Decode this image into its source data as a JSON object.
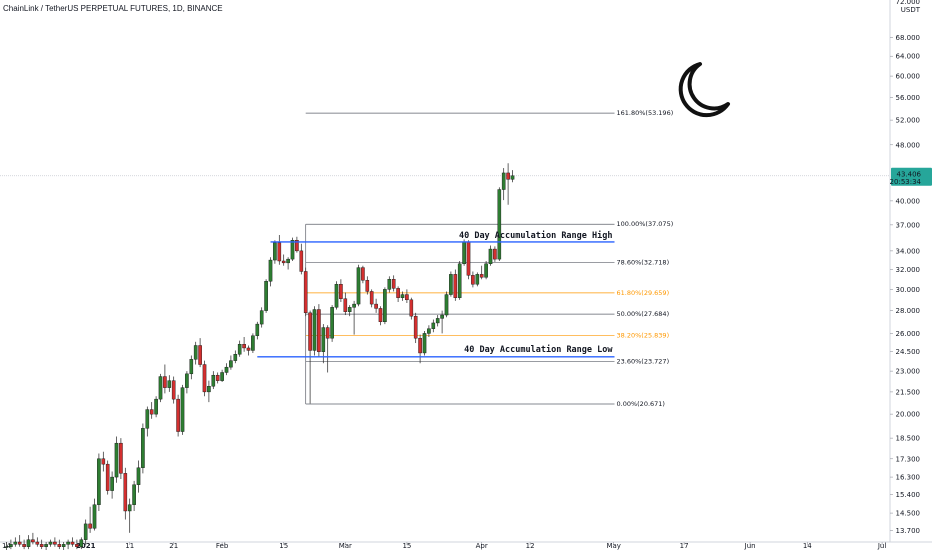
{
  "header": {
    "title": "ChainLink / TetherUS PERPETUAL FUTURES, 1D, BINANCE",
    "currency": "USDT",
    "top_price": "72.000"
  },
  "price_tag": {
    "value": "43.406",
    "countdown": "20:53:34",
    "color": "#26a69a"
  },
  "colors": {
    "up": "#26a69a",
    "down": "#ef5350",
    "fib_gray": "#787b86",
    "fib_orange": "#ff9800",
    "range_line": "#2962ff"
  },
  "annotations": {
    "range_high": "40 Day Accumulation Range High",
    "range_low": "40 Day Accumulation Range Low",
    "moon_icon": "crescent-moon-icon"
  },
  "chart_data": {
    "type": "candlestick",
    "title": "ChainLink / TetherUS PERPETUAL FUTURES, 1D, BINANCE",
    "xlabel": "",
    "ylabel": "",
    "y_scale": "log",
    "y_ticks": [
      "68.000",
      "64.000",
      "60.000",
      "56.000",
      "52.000",
      "48.000",
      "40.000",
      "37.000",
      "34.000",
      "32.000",
      "30.000",
      "28.000",
      "26.000",
      "24.500",
      "23.000",
      "21.500",
      "20.000",
      "18.500",
      "17.300",
      "16.300",
      "15.400",
      "14.500",
      "13.700"
    ],
    "x_ticks": [
      "14",
      "2021",
      "11",
      "21",
      "Feb",
      "15",
      "Mar",
      "15",
      "Apr",
      "12",
      "May",
      "17",
      "Jun",
      "14",
      "Jul"
    ],
    "start_date": "2020-12-14",
    "grid": false,
    "last_price": 43.406,
    "fib_levels": [
      {
        "label": "161.80%(53.196)",
        "value": 53.196,
        "style": "gray"
      },
      {
        "label": "100.00%(37.075)",
        "value": 37.075,
        "style": "gray"
      },
      {
        "label": "78.60%(32.718)",
        "value": 32.718,
        "style": "gray"
      },
      {
        "label": "61.80%(29.659)",
        "value": 29.659,
        "style": "orange"
      },
      {
        "label": "50.00%(27.684)",
        "value": 27.684,
        "style": "gray"
      },
      {
        "label": "38.20%(25.839)",
        "value": 25.839,
        "style": "orange"
      },
      {
        "label": "23.60%(23.727)",
        "value": 23.727,
        "style": "gray"
      },
      {
        "label": "0.00%(20.671)",
        "value": 20.671,
        "style": "gray"
      }
    ],
    "range_lines": [
      {
        "name": "40 Day Accumulation Range High",
        "value": 35.0,
        "from": "2021-02-12",
        "to": "2021-04-13"
      },
      {
        "name": "40 Day Accumulation Range Low",
        "value": 24.1,
        "from": "2021-02-09",
        "to": "2021-04-13"
      }
    ],
    "fib_from": "2021-02-20",
    "fib_to": "2021-04-13",
    "candles": [
      [
        13.0,
        13.2,
        12.8,
        13.0
      ],
      [
        13.0,
        13.3,
        12.9,
        13.1
      ],
      [
        13.1,
        13.4,
        13.0,
        13.2
      ],
      [
        13.2,
        13.5,
        13.0,
        13.1
      ],
      [
        13.1,
        13.3,
        12.9,
        13.0
      ],
      [
        13.0,
        13.5,
        12.9,
        13.3
      ],
      [
        13.3,
        13.6,
        13.1,
        13.2
      ],
      [
        13.2,
        13.4,
        13.0,
        13.1
      ],
      [
        13.1,
        13.3,
        12.9,
        13.0
      ],
      [
        13.0,
        13.2,
        12.8,
        13.1
      ],
      [
        13.1,
        13.3,
        13.0,
        13.2
      ],
      [
        13.2,
        13.4,
        13.0,
        13.1
      ],
      [
        13.1,
        13.3,
        12.9,
        13.0
      ],
      [
        13.0,
        13.2,
        12.8,
        13.1
      ],
      [
        13.1,
        13.3,
        12.9,
        13.2
      ],
      [
        13.2,
        13.4,
        13.0,
        13.1
      ],
      [
        13.1,
        13.3,
        12.9,
        13.0
      ],
      [
        13.0,
        13.4,
        12.9,
        13.3
      ],
      [
        13.3,
        14.2,
        13.1,
        14.0
      ],
      [
        14.0,
        14.8,
        13.6,
        13.8
      ],
      [
        13.8,
        15.2,
        13.7,
        14.9
      ],
      [
        14.9,
        17.6,
        14.6,
        17.3
      ],
      [
        17.3,
        17.7,
        16.6,
        17.0
      ],
      [
        17.0,
        17.2,
        15.4,
        15.6
      ],
      [
        15.6,
        16.6,
        15.2,
        16.3
      ],
      [
        16.3,
        18.6,
        16.0,
        18.2
      ],
      [
        18.2,
        18.5,
        16.2,
        16.5
      ],
      [
        16.5,
        16.8,
        14.2,
        14.6
      ],
      [
        14.6,
        15.2,
        13.6,
        14.9
      ],
      [
        14.9,
        16.1,
        14.6,
        15.9
      ],
      [
        15.9,
        17.2,
        15.5,
        16.8
      ],
      [
        16.8,
        19.4,
        16.5,
        19.1
      ],
      [
        19.1,
        20.5,
        18.6,
        20.3
      ],
      [
        20.3,
        20.8,
        19.7,
        20.0
      ],
      [
        20.0,
        21.2,
        19.8,
        21.0
      ],
      [
        21.0,
        22.8,
        20.8,
        22.6
      ],
      [
        22.6,
        23.5,
        21.4,
        21.8
      ],
      [
        21.8,
        22.7,
        21.5,
        22.3
      ],
      [
        22.3,
        22.6,
        20.7,
        21.0
      ],
      [
        21.0,
        21.3,
        18.6,
        18.9
      ],
      [
        18.9,
        22.0,
        18.7,
        21.8
      ],
      [
        21.8,
        23.0,
        21.4,
        22.8
      ],
      [
        22.8,
        24.2,
        22.4,
        23.9
      ],
      [
        23.9,
        25.3,
        23.5,
        25.0
      ],
      [
        25.0,
        25.6,
        23.3,
        23.5
      ],
      [
        23.5,
        23.8,
        21.2,
        21.5
      ],
      [
        21.5,
        22.3,
        20.8,
        21.9
      ],
      [
        21.9,
        23.0,
        21.7,
        22.7
      ],
      [
        22.7,
        22.9,
        22.1,
        22.3
      ],
      [
        22.3,
        23.1,
        22.2,
        22.9
      ],
      [
        22.9,
        23.6,
        22.7,
        23.3
      ],
      [
        23.3,
        24.2,
        23.1,
        23.8
      ],
      [
        23.8,
        24.6,
        23.6,
        24.3
      ],
      [
        24.3,
        25.4,
        24.1,
        25.1
      ],
      [
        25.1,
        25.7,
        24.5,
        24.8
      ],
      [
        24.8,
        25.0,
        24.2,
        24.6
      ],
      [
        24.6,
        26.0,
        24.4,
        25.8
      ],
      [
        25.8,
        27.0,
        25.5,
        26.8
      ],
      [
        26.8,
        28.3,
        26.5,
        28.0
      ],
      [
        28.0,
        31.0,
        27.8,
        30.8
      ],
      [
        30.8,
        33.3,
        30.3,
        33.0
      ],
      [
        33.0,
        35.2,
        32.6,
        34.9
      ],
      [
        34.9,
        35.8,
        32.5,
        32.9
      ],
      [
        32.9,
        33.6,
        32.4,
        32.7
      ],
      [
        32.7,
        33.3,
        32.0,
        33.1
      ],
      [
        33.1,
        35.5,
        32.9,
        35.2
      ],
      [
        35.2,
        35.6,
        33.8,
        34.0
      ],
      [
        34.0,
        34.8,
        31.5,
        31.8
      ],
      [
        31.8,
        32.2,
        27.5,
        27.8
      ],
      [
        27.8,
        28.0,
        20.7,
        24.6
      ],
      [
        24.6,
        28.4,
        24.2,
        28.1
      ],
      [
        28.1,
        28.6,
        24.1,
        24.5
      ],
      [
        24.5,
        26.8,
        23.6,
        26.5
      ],
      [
        26.5,
        26.7,
        22.9,
        25.6
      ],
      [
        25.6,
        28.5,
        25.3,
        28.3
      ],
      [
        28.3,
        30.8,
        28.1,
        30.5
      ],
      [
        30.5,
        31.0,
        28.8,
        29.1
      ],
      [
        29.1,
        29.7,
        27.6,
        27.9
      ],
      [
        27.9,
        28.5,
        27.5,
        28.3
      ],
      [
        28.3,
        28.9,
        25.9,
        28.6
      ],
      [
        28.6,
        32.5,
        28.4,
        32.2
      ],
      [
        32.2,
        32.4,
        30.6,
        30.9
      ],
      [
        30.9,
        31.3,
        29.5,
        29.8
      ],
      [
        29.8,
        30.0,
        28.3,
        28.6
      ],
      [
        28.6,
        29.1,
        27.8,
        28.2
      ],
      [
        28.2,
        28.4,
        26.7,
        27.0
      ],
      [
        27.0,
        30.2,
        26.8,
        30.0
      ],
      [
        30.0,
        31.3,
        29.7,
        31.0
      ],
      [
        31.0,
        31.4,
        29.8,
        30.1
      ],
      [
        30.1,
        30.3,
        28.8,
        29.2
      ],
      [
        29.2,
        29.8,
        28.9,
        29.5
      ],
      [
        29.5,
        30.0,
        28.7,
        29.0
      ],
      [
        29.0,
        29.2,
        27.2,
        27.5
      ],
      [
        27.5,
        27.8,
        25.2,
        25.6
      ],
      [
        25.6,
        25.9,
        23.6,
        24.4
      ],
      [
        24.4,
        26.2,
        24.2,
        26.0
      ],
      [
        26.0,
        26.7,
        25.7,
        26.4
      ],
      [
        26.4,
        27.2,
        26.1,
        26.9
      ],
      [
        26.9,
        27.6,
        26.6,
        27.3
      ],
      [
        27.3,
        28.0,
        26.0,
        27.6
      ],
      [
        27.6,
        29.8,
        27.4,
        29.5
      ],
      [
        29.5,
        31.8,
        29.3,
        31.5
      ],
      [
        31.5,
        32.0,
        28.9,
        29.2
      ],
      [
        29.2,
        32.9,
        29.0,
        32.6
      ],
      [
        32.6,
        35.3,
        32.4,
        35.0
      ],
      [
        35.0,
        35.2,
        31.0,
        31.4
      ],
      [
        31.4,
        31.8,
        30.2,
        30.5
      ],
      [
        30.5,
        31.7,
        30.3,
        31.5
      ],
      [
        31.5,
        32.4,
        31.0,
        31.2
      ],
      [
        31.2,
        32.9,
        31.0,
        32.6
      ],
      [
        32.6,
        34.6,
        32.4,
        34.2
      ],
      [
        34.2,
        34.5,
        32.8,
        33.1
      ],
      [
        33.1,
        41.8,
        32.9,
        41.5
      ],
      [
        41.5,
        44.5,
        40.1,
        43.8
      ],
      [
        43.8,
        45.2,
        39.5,
        42.9
      ],
      [
        42.9,
        44.2,
        42.5,
        43.4
      ]
    ]
  }
}
